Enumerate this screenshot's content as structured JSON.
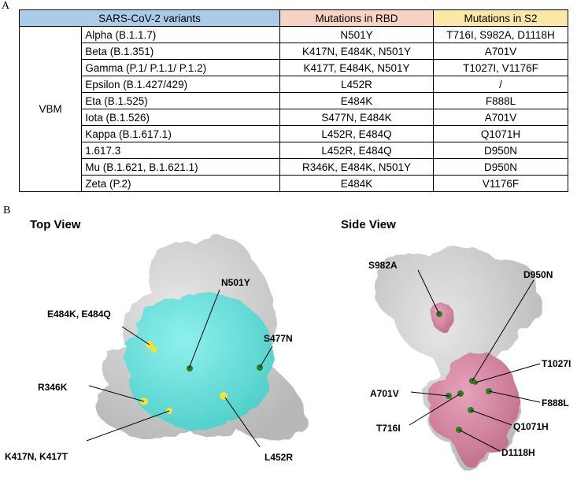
{
  "panel_a_label": "A",
  "panel_b_label": "B",
  "table": {
    "headers": [
      "SARS-CoV-2 variants",
      "Mutations in RBD",
      "Mutations in S2"
    ],
    "group_label": "VBM",
    "rows": [
      {
        "variant": "Alpha (B.1.1.7)",
        "rbd": "N501Y",
        "s2": "T716I, S982A, D1118H"
      },
      {
        "variant": "Beta (B.1.351)",
        "rbd": "K417N, E484K, N501Y",
        "s2": "A701V"
      },
      {
        "variant": "Gamma (P.1/ P.1.1/ P.1.2)",
        "rbd": "K417T, E484K, N501Y",
        "s2": "T1027I, V1176F"
      },
      {
        "variant": "Epsilon (B.1.427/429)",
        "rbd": "L452R",
        "s2": "/"
      },
      {
        "variant": "Eta (B.1.525)",
        "rbd": "E484K",
        "s2": "F888L"
      },
      {
        "variant": "Iota (B.1.526)",
        "rbd": "S477N, E484K",
        "s2": "A701V"
      },
      {
        "variant": "Kappa (B.1.617.1)",
        "rbd": "L452R, E484Q",
        "s2": "Q1071H"
      },
      {
        "variant": "1.617.3",
        "rbd": "L452R, E484Q",
        "s2": "D950N"
      },
      {
        "variant": "Mu (B.1.621, B.1.621.1)",
        "rbd": "R346K, E484K, N501Y",
        "s2": "D950N"
      },
      {
        "variant": "Zeta (P.2)",
        "rbd": "E484K",
        "s2": "V1176F"
      }
    ]
  },
  "top_view": {
    "title": "Top View",
    "labels": [
      "N501Y",
      "E484K, E484Q",
      "S477N",
      "R346K",
      "K417N, K417T",
      "L452R"
    ]
  },
  "side_view": {
    "title": "Side View",
    "labels": [
      "S982A",
      "D950N",
      "T1027I",
      "A701V",
      "F888L",
      "T716I",
      "Q1071H",
      "D1118H"
    ]
  },
  "colors": {
    "header_variants": "#a9cde9",
    "header_rbd": "#f7d3c3",
    "header_s2": "#fbe7a6",
    "protein_grey": "#cfcfcf",
    "rbd_cyan": "#6fe0dc",
    "s2_pink": "#d98aa6",
    "mutation_yellow": "#f2e23a",
    "mutation_green": "#2e7d1e"
  }
}
